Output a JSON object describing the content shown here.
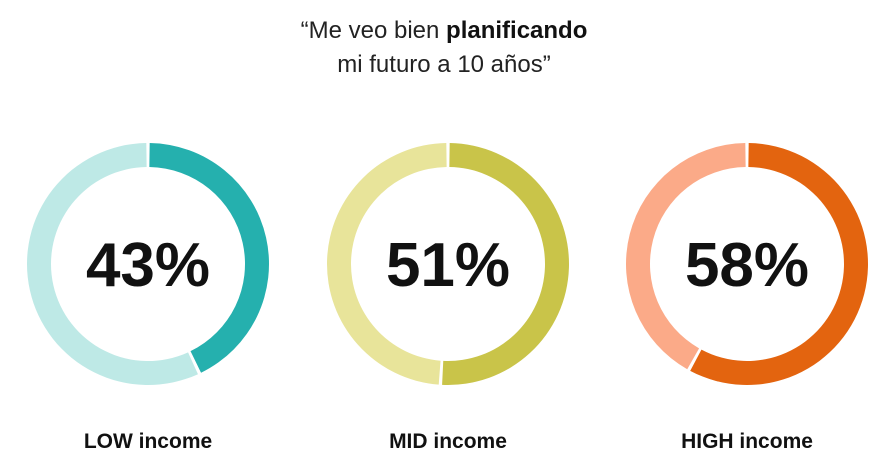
{
  "title": {
    "prefix": "“Me veo bien ",
    "bold": "planificando",
    "line2": "mi futuro a 10 años”"
  },
  "chart_data": {
    "type": "pie",
    "title": "“Me veo bien planificando mi futuro a 10 años”",
    "categories": [
      "LOW income",
      "MID income",
      "HIGH income"
    ],
    "values": [
      43,
      51,
      58
    ],
    "value_labels": [
      "43%",
      "51%",
      "58%"
    ],
    "unit": "%",
    "series": [
      {
        "name": "LOW income",
        "value": 43,
        "label": "43%",
        "color": "#25B0AE",
        "track_color": "#BEE9E6"
      },
      {
        "name": "MID income",
        "value": 51,
        "label": "51%",
        "color": "#C9C449",
        "track_color": "#E8E49A"
      },
      {
        "name": "HIGH income",
        "value": 58,
        "label": "58%",
        "color": "#E3640F",
        "track_color": "#FBAA88"
      }
    ],
    "legend": "none",
    "grid": false
  }
}
